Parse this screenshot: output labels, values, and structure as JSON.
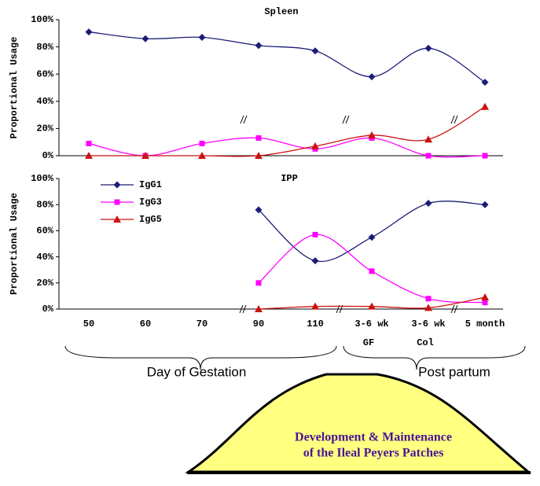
{
  "chart_data": [
    {
      "type": "line",
      "title": "Spleen",
      "y_label": "Proportional Usage",
      "ylim": [
        0,
        100
      ],
      "yticks": [
        {
          "value": 0,
          "label": "0%"
        },
        {
          "value": 20,
          "label": "20%"
        },
        {
          "value": 40,
          "label": "40%"
        },
        {
          "value": 60,
          "label": "60%"
        },
        {
          "value": 80,
          "label": "80%"
        },
        {
          "value": 100,
          "label": "100%"
        }
      ],
      "series": [
        {
          "color": "#1c1c78",
          "marker": "diamond",
          "values": [
            91,
            86,
            87,
            81,
            77,
            58,
            79,
            54
          ]
        },
        {
          "color": "#ff00ff",
          "marker": "square",
          "values": [
            9,
            0,
            9,
            13,
            5,
            13,
            0,
            0
          ]
        },
        {
          "color": "#cc1111",
          "marker": "triangle",
          "values": [
            0,
            0,
            0,
            0,
            7,
            15,
            12,
            36
          ]
        }
      ]
    },
    {
      "type": "line",
      "title": "IPP",
      "y_label": "Proportional Usage",
      "categories": [
        "50",
        "60",
        "70",
        "90",
        "110",
        "3-6 wk",
        "3-6 wk",
        "5 month"
      ],
      "category_notes": [
        null,
        null,
        null,
        null,
        null,
        "GF",
        "Col",
        null
      ],
      "ylim": [
        0,
        100
      ],
      "yticks": [
        {
          "value": 0,
          "label": "0%"
        },
        {
          "value": 20,
          "label": "20%"
        },
        {
          "value": 40,
          "label": "40%"
        },
        {
          "value": 60,
          "label": "60%"
        },
        {
          "value": 80,
          "label": "80%"
        },
        {
          "value": 100,
          "label": "100%"
        }
      ],
      "series": [
        {
          "name": "IgG1",
          "color": "#1c1c78",
          "marker": "diamond",
          "values": [
            null,
            null,
            null,
            76,
            37,
            55,
            81,
            80
          ]
        },
        {
          "name": "IgG3",
          "color": "#ff00ff",
          "marker": "square",
          "values": [
            null,
            null,
            null,
            20,
            57,
            29,
            8,
            5
          ]
        },
        {
          "name": "IgG5",
          "color": "#cc1111",
          "marker": "triangle",
          "values": [
            null,
            null,
            null,
            0,
            2,
            2,
            1,
            9
          ]
        }
      ]
    }
  ],
  "groups": [
    "Day of Gestation",
    "Post partum"
  ],
  "callout": [
    "Development  &  Maintenance",
    "of the Ileal Peyers Patches"
  ]
}
